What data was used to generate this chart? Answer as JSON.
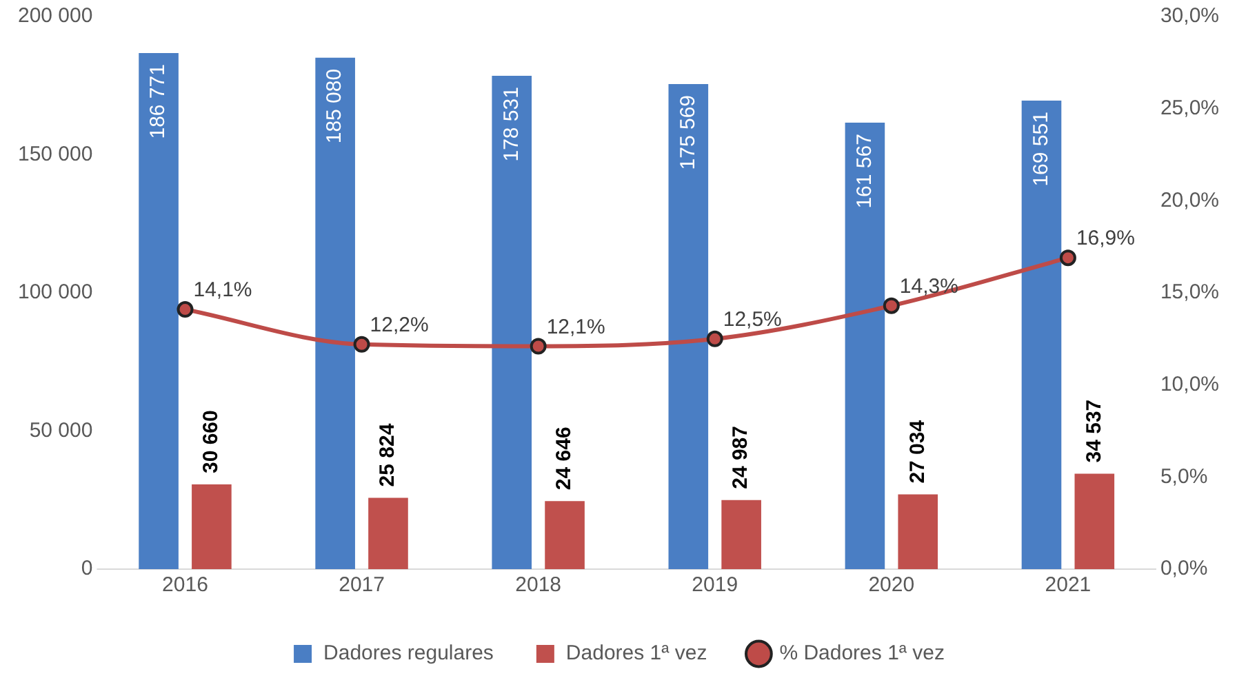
{
  "chart_data": {
    "type": "bar",
    "categories": [
      "2016",
      "2017",
      "2018",
      "2019",
      "2020",
      "2021"
    ],
    "series": [
      {
        "name": "Dadores regulares",
        "color": "#4a7ec4",
        "values": [
          186771,
          185080,
          178531,
          175569,
          161567,
          169551
        ],
        "value_labels": [
          "186 771",
          "185 080",
          "178 531",
          "175 569",
          "161 567",
          "169 551"
        ]
      },
      {
        "name": "Dadores 1ª vez",
        "color": "#c0504d",
        "values": [
          30660,
          25824,
          24646,
          24987,
          27034,
          34537
        ],
        "value_labels": [
          "30 660",
          "25 824",
          "24 646",
          "24 987",
          "27 034",
          "34 537"
        ]
      },
      {
        "name": "% Dadores 1ª vez",
        "type": "line",
        "axis": "y2",
        "color": "#be4b48",
        "values": [
          14.1,
          12.2,
          12.1,
          12.5,
          14.3,
          16.9
        ],
        "value_labels": [
          "14,1%",
          "12,2%",
          "12,1%",
          "12,5%",
          "14,3%",
          "16,9%"
        ]
      }
    ],
    "ylim": [
      0,
      200000
    ],
    "yticks": [
      {
        "value": 0,
        "label": "0"
      },
      {
        "value": 50000,
        "label": "50 000"
      },
      {
        "value": 100000,
        "label": "100 000"
      },
      {
        "value": 150000,
        "label": "150 000"
      },
      {
        "value": 200000,
        "label": "200 000"
      }
    ],
    "y2lim": [
      0,
      30
    ],
    "y2ticks": [
      {
        "value": 0,
        "label": "0,0%"
      },
      {
        "value": 5,
        "label": "5,0%"
      },
      {
        "value": 10,
        "label": "10,0%"
      },
      {
        "value": 15,
        "label": "15,0%"
      },
      {
        "value": 20,
        "label": "20,0%"
      },
      {
        "value": 25,
        "label": "25,0%"
      },
      {
        "value": 30,
        "label": "30,0%"
      }
    ],
    "grid": false,
    "legend": "bottom",
    "marker": "circle",
    "line_style": "solid"
  }
}
